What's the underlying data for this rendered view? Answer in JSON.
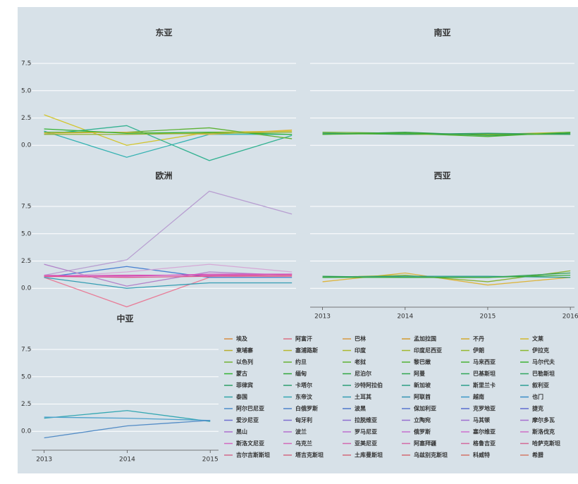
{
  "charts": [
    {
      "type": "line",
      "title": "东亚",
      "x": [
        2013,
        2014,
        2015,
        2016
      ],
      "xlim": [
        2012.85,
        2016.05
      ],
      "ylim": [
        -1.6,
        8.6
      ],
      "yticks": [
        {
          "value": 0,
          "label": "0.0"
        },
        2.5,
        {
          "value": 5,
          "label": "5.0"
        },
        7.5
      ],
      "series": [
        {
          "name": "文莱",
          "color": "hsl(55,65%,50%)",
          "values": [
            2.8,
            0.0,
            1.2,
            1.3
          ]
        },
        {
          "name": "柬埔寨",
          "color": "hsl(180,55%,45%)",
          "values": [
            1.3,
            -1.1,
            1.0,
            1.0
          ]
        },
        {
          "name": "印度尼西亚",
          "color": "hsl(165,55%,45%)",
          "values": [
            1.0,
            1.8,
            -1.4,
            0.9
          ]
        },
        {
          "name": "老挝",
          "color": "hsl(100,55%,45%)",
          "values": [
            1.2,
            1.2,
            1.6,
            0.6
          ]
        },
        {
          "name": "马来西亚",
          "color": "hsl(45,70%,55%)",
          "values": [
            1.1,
            1.2,
            1.0,
            1.4
          ]
        },
        {
          "name": "蒙古",
          "color": "hsl(120,55%,45%)",
          "values": [
            1.5,
            1.1,
            1.2,
            1.0
          ]
        },
        {
          "name": "缅甸",
          "color": "hsl(75,55%,45%)",
          "values": [
            1.0,
            1.0,
            1.1,
            1.2
          ]
        }
      ]
    },
    {
      "type": "line",
      "title": "南亚",
      "x": [
        2013,
        2014,
        2015,
        2016
      ],
      "xlim": [
        2012.85,
        2016.05
      ],
      "ylim": [
        -1.6,
        8.6
      ],
      "yticks": [
        {
          "value": 0,
          "label": "0.0"
        },
        2.5,
        {
          "value": 5,
          "label": "5.0"
        },
        7.5
      ],
      "series": [
        {
          "name": "阿富汗",
          "color": "hsl(60,60%,45%)",
          "values": [
            1.1,
            1.0,
            1.0,
            1.2
          ]
        },
        {
          "name": "孟加拉国",
          "color": "hsl(95,55%,45%)",
          "values": [
            1.2,
            1.1,
            1.0,
            1.0
          ]
        },
        {
          "name": "不丹",
          "color": "hsl(130,55%,40%)",
          "values": [
            1.0,
            1.2,
            0.9,
            1.1
          ]
        },
        {
          "name": "印度",
          "color": "hsl(150,55%,40%)",
          "values": [
            1.1,
            1.0,
            1.1,
            1.0
          ]
        },
        {
          "name": "尼泊尔",
          "color": "hsl(110,55%,45%)",
          "values": [
            1.0,
            1.1,
            0.8,
            1.2
          ]
        }
      ]
    },
    {
      "type": "line",
      "title": "欧洲",
      "x": [
        2013,
        2014,
        2015,
        2016
      ],
      "xlim": [
        2012.85,
        2016.05
      ],
      "ylim": [
        -1.6,
        8.6
      ],
      "yticks": [
        {
          "value": 0,
          "label": "0.0"
        },
        2.5,
        {
          "value": 5,
          "label": "5.0"
        },
        7.5
      ],
      "series": [
        {
          "name": "乌克兰",
          "color": "hsl(270,35%,72%)",
          "values": [
            1.2,
            2.6,
            8.9,
            6.8
          ]
        },
        {
          "name": "阿尔巴尼亚",
          "color": "hsl(345,70%,70%)",
          "values": [
            1.0,
            -1.7,
            1.0,
            1.1
          ]
        },
        {
          "name": "白俄罗斯",
          "color": "hsl(215,60%,55%)",
          "values": [
            1.0,
            2.0,
            1.0,
            1.0
          ]
        },
        {
          "name": "波黑",
          "color": "hsl(280,40%,65%)",
          "values": [
            2.2,
            0.2,
            1.5,
            1.2
          ]
        },
        {
          "name": "保加利亚",
          "color": "hsl(300,35%,75%)",
          "values": [
            1.0,
            1.5,
            2.2,
            1.5
          ]
        },
        {
          "name": "克罗地亚",
          "color": "hsl(190,55%,45%)",
          "values": [
            1.0,
            0.0,
            0.5,
            0.5
          ]
        },
        {
          "name": "捷克",
          "color": "hsl(320,65%,55%)",
          "values": [
            1.1,
            1.2,
            1.2,
            1.3
          ]
        },
        {
          "name": "波兰",
          "color": "hsl(335,70%,60%)",
          "values": [
            1.1,
            1.0,
            1.1,
            1.2
          ]
        },
        {
          "name": "罗马尼亚",
          "color": "hsl(310,60%,60%)",
          "values": [
            1.2,
            1.1,
            1.3,
            1.3
          ]
        }
      ]
    },
    {
      "type": "line",
      "title": "西亚",
      "x": [
        2013,
        2014,
        2015,
        2016
      ],
      "xlim": [
        2012.85,
        2016.05
      ],
      "ylim": [
        -1.6,
        8.6
      ],
      "yticks": [
        {
          "value": 0,
          "label": "0.0"
        },
        2.5,
        {
          "value": 5,
          "label": "5.0"
        },
        7.5
      ],
      "xticks": [
        2013,
        2014,
        2015,
        2016
      ],
      "series": [
        {
          "name": "巴林",
          "color": "hsl(45,70%,55%)",
          "values": [
            0.6,
            1.4,
            0.3,
            1.0
          ]
        },
        {
          "name": "伊朗",
          "color": "hsl(80,55%,45%)",
          "values": [
            1.0,
            1.2,
            0.6,
            1.6
          ]
        },
        {
          "name": "伊拉克",
          "color": "hsl(140,55%,40%)",
          "values": [
            1.1,
            1.0,
            1.0,
            1.4
          ]
        },
        {
          "name": "以色列",
          "color": "hsl(170,55%,40%)",
          "values": [
            1.0,
            1.1,
            1.1,
            1.0
          ]
        },
        {
          "name": "约旦",
          "color": "hsl(120,50%,45%)",
          "values": [
            1.0,
            1.0,
            1.0,
            1.2
          ]
        }
      ]
    },
    {
      "type": "line",
      "title": "中亚",
      "x": [
        2013,
        2014,
        2015
      ],
      "xlim": [
        2012.85,
        2015.1
      ],
      "ylim": [
        -1.6,
        8.6
      ],
      "yticks": [
        {
          "value": 0,
          "label": "0.0"
        },
        2.5,
        {
          "value": 5,
          "label": "5.0"
        },
        7.5
      ],
      "xticks": [
        2013,
        2014,
        2015
      ],
      "series": [
        {
          "name": "哈萨克斯坦",
          "color": "hsl(185,55%,45%)",
          "values": [
            1.2,
            1.9,
            0.9
          ]
        },
        {
          "name": "吉尔吉斯斯坦",
          "color": "hsl(200,55%,55%)",
          "values": [
            1.3,
            1.2,
            1.0
          ]
        },
        {
          "name": "塔吉克斯坦",
          "color": "hsl(210,50%,55%)",
          "values": [
            -0.6,
            0.5,
            1.0
          ]
        }
      ]
    }
  ],
  "legend": {
    "entries": [
      {
        "name": "埃及",
        "color": "hsl(30,65%,55%)"
      },
      {
        "name": "阿富汗",
        "color": "hsl(350,60%,65%)"
      },
      {
        "name": "巴林",
        "color": "hsl(35,65%,55%)"
      },
      {
        "name": "孟加拉国",
        "color": "hsl(40,65%,50%)"
      },
      {
        "name": "不丹",
        "color": "hsl(45,65%,50%)"
      },
      {
        "name": "文莱",
        "color": "hsl(50,65%,50%)"
      },
      {
        "name": "柬埔寨",
        "color": "hsl(55,60%,45%)"
      },
      {
        "name": "塞浦路斯",
        "color": "hsl(60,60%,45%)"
      },
      {
        "name": "印度",
        "color": "hsl(65,60%,45%)"
      },
      {
        "name": "印度尼西亚",
        "color": "hsl(70,60%,45%)"
      },
      {
        "name": "伊朗",
        "color": "hsl(75,60%,45%)"
      },
      {
        "name": "伊拉克",
        "color": "hsl(80,60%,45%)"
      },
      {
        "name": "以色列",
        "color": "hsl(90,55%,45%)"
      },
      {
        "name": "约旦",
        "color": "hsl(95,55%,45%)"
      },
      {
        "name": "老挝",
        "color": "hsl(100,55%,45%)"
      },
      {
        "name": "黎巴嫩",
        "color": "hsl(105,55%,45%)"
      },
      {
        "name": "马来西亚",
        "color": "hsl(110,55%,45%)"
      },
      {
        "name": "马尔代夫",
        "color": "hsl(115,55%,45%)"
      },
      {
        "name": "蒙古",
        "color": "hsl(120,55%,45%)"
      },
      {
        "name": "缅甸",
        "color": "hsl(125,55%,42%)"
      },
      {
        "name": "尼泊尔",
        "color": "hsl(130,55%,42%)"
      },
      {
        "name": "阿曼",
        "color": "hsl(135,55%,42%)"
      },
      {
        "name": "巴基斯坦",
        "color": "hsl(140,55%,42%)"
      },
      {
        "name": "巴勒斯坦",
        "color": "hsl(145,55%,42%)"
      },
      {
        "name": "菲律宾",
        "color": "hsl(150,55%,40%)"
      },
      {
        "name": "卡塔尔",
        "color": "hsl(155,55%,40%)"
      },
      {
        "name": "沙特阿拉伯",
        "color": "hsl(160,55%,40%)"
      },
      {
        "name": "新加坡",
        "color": "hsl(165,55%,40%)"
      },
      {
        "name": "斯里兰卡",
        "color": "hsl(170,55%,40%)"
      },
      {
        "name": "叙利亚",
        "color": "hsl(175,55%,40%)"
      },
      {
        "name": "泰国",
        "color": "hsl(180,55%,42%)"
      },
      {
        "name": "东帝汶",
        "color": "hsl(185,55%,45%)"
      },
      {
        "name": "土耳其",
        "color": "hsl(190,55%,45%)"
      },
      {
        "name": "阿联酋",
        "color": "hsl(195,55%,45%)"
      },
      {
        "name": "越南",
        "color": "hsl(200,55%,50%)"
      },
      {
        "name": "也门",
        "color": "hsl(205,55%,50%)"
      },
      {
        "name": "阿尔巴尼亚",
        "color": "hsl(210,55%,55%)"
      },
      {
        "name": "白俄罗斯",
        "color": "hsl(215,55%,55%)"
      },
      {
        "name": "波黑",
        "color": "hsl(220,55%,55%)"
      },
      {
        "name": "保加利亚",
        "color": "hsl(225,55%,58%)"
      },
      {
        "name": "克罗地亚",
        "color": "hsl(230,55%,58%)"
      },
      {
        "name": "捷克",
        "color": "hsl(235,55%,60%)"
      },
      {
        "name": "爱沙尼亚",
        "color": "hsl(240,50%,62%)"
      },
      {
        "name": "匈牙利",
        "color": "hsl(250,50%,62%)"
      },
      {
        "name": "拉脱维亚",
        "color": "hsl(260,50%,62%)"
      },
      {
        "name": "立陶宛",
        "color": "hsl(265,50%,62%)"
      },
      {
        "name": "马其顿",
        "color": "hsl(270,50%,62%)"
      },
      {
        "name": "摩尔多瓦",
        "color": "hsl(275,50%,62%)"
      },
      {
        "name": "黑山",
        "color": "hsl(280,50%,62%)"
      },
      {
        "name": "波兰",
        "color": "hsl(285,50%,62%)"
      },
      {
        "name": "罗马尼亚",
        "color": "hsl(290,50%,62%)"
      },
      {
        "name": "俄罗斯",
        "color": "hsl(295,50%,62%)"
      },
      {
        "name": "塞尔维亚",
        "color": "hsl(300,50%,62%)"
      },
      {
        "name": "斯洛伐克",
        "color": "hsl(305,50%,62%)"
      },
      {
        "name": "斯洛文尼亚",
        "color": "hsl(310,55%,62%)"
      },
      {
        "name": "乌克兰",
        "color": "hsl(315,55%,62%)"
      },
      {
        "name": "亚美尼亚",
        "color": "hsl(320,55%,62%)"
      },
      {
        "name": "阿塞拜疆",
        "color": "hsl(325,55%,62%)"
      },
      {
        "name": "格鲁吉亚",
        "color": "hsl(330,55%,62%)"
      },
      {
        "name": "哈萨克斯坦",
        "color": "hsl(335,55%,62%)"
      },
      {
        "name": "吉尔吉斯斯坦",
        "color": "hsl(340,55%,62%)"
      },
      {
        "name": "塔吉克斯坦",
        "color": "hsl(345,55%,62%)"
      },
      {
        "name": "土库曼斯坦",
        "color": "hsl(350,55%,62%)"
      },
      {
        "name": "乌兹别克斯坦",
        "color": "hsl(355,55%,62%)"
      },
      {
        "name": "科威特",
        "color": "hsl(5,55%,62%)"
      },
      {
        "name": "希腊",
        "color": "hsl(10,55%,62%)"
      }
    ]
  }
}
